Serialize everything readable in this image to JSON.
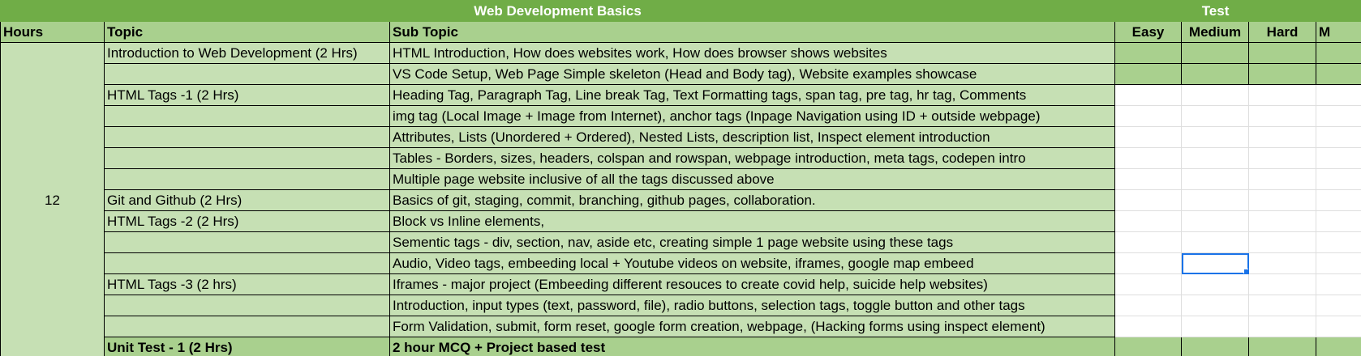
{
  "sheet": {
    "band_title": "Web Development Basics",
    "test_title": "Test",
    "headers": {
      "hours": "Hours",
      "topic": "Topic",
      "subtopic": "Sub Topic",
      "easy": "Easy",
      "medium": "Medium",
      "hard": "Hard",
      "extra": "M"
    },
    "hours_value": "12",
    "rows": [
      {
        "topic": "Introduction to Web Development (2 Hrs)",
        "subtopic": "HTML Introduction, How does websites work, How does browser shows websites"
      },
      {
        "topic": "",
        "subtopic": "VS Code Setup, Web Page Simple skeleton (Head and Body tag), Website examples showcase"
      },
      {
        "topic": "HTML Tags -1  (2 Hrs)",
        "subtopic": "Heading Tag, Paragraph Tag, Line break Tag, Text Formatting tags, span tag, pre tag, hr tag, Comments"
      },
      {
        "topic": "",
        "subtopic": " img tag (Local Image + Image from Internet), anchor tags (Inpage Navigation using ID + outside webpage)"
      },
      {
        "topic": "",
        "subtopic": "Attributes, Lists (Unordered + Ordered), Nested Lists,  description list, Inspect element introduction"
      },
      {
        "topic": "",
        "subtopic": "Tables - Borders, sizes, headers, colspan and rowspan, webpage introduction, meta tags, codepen intro"
      },
      {
        "topic": "",
        "subtopic": "Multiple page website inclusive of all the tags discussed above"
      },
      {
        "topic": "Git and Github (2 Hrs)",
        "subtopic": "Basics of git, staging, commit, branching, github pages, collaboration."
      },
      {
        "topic": "HTML Tags -2  (2 Hrs)",
        "subtopic": "Block vs Inline elements,"
      },
      {
        "topic": "",
        "subtopic": "Sementic tags - div, section, nav, aside etc, creating simple 1 page website using these tags"
      },
      {
        "topic": "",
        "subtopic": "Audio, Video tags,  embeeding local + Youtube videos on website, iframes, google map embeed"
      },
      {
        "topic": "HTML Tags -3 (2 hrs)",
        "subtopic": "Iframes - major project   (Embeeding different resouces to create covid help, suicide help websites)"
      },
      {
        "topic": "",
        "subtopic": "Introduction, input types (text, password, file), radio buttons, selection tags, toggle button and other tags"
      },
      {
        "topic": "",
        "subtopic": "Form Validation, submit, form reset, google form creation, webpage, (Hacking forms using inspect element)"
      },
      {
        "topic": "Unit Test - 1 (2 Hrs)",
        "subtopic": "2 hour MCQ + Project based test"
      }
    ]
  }
}
